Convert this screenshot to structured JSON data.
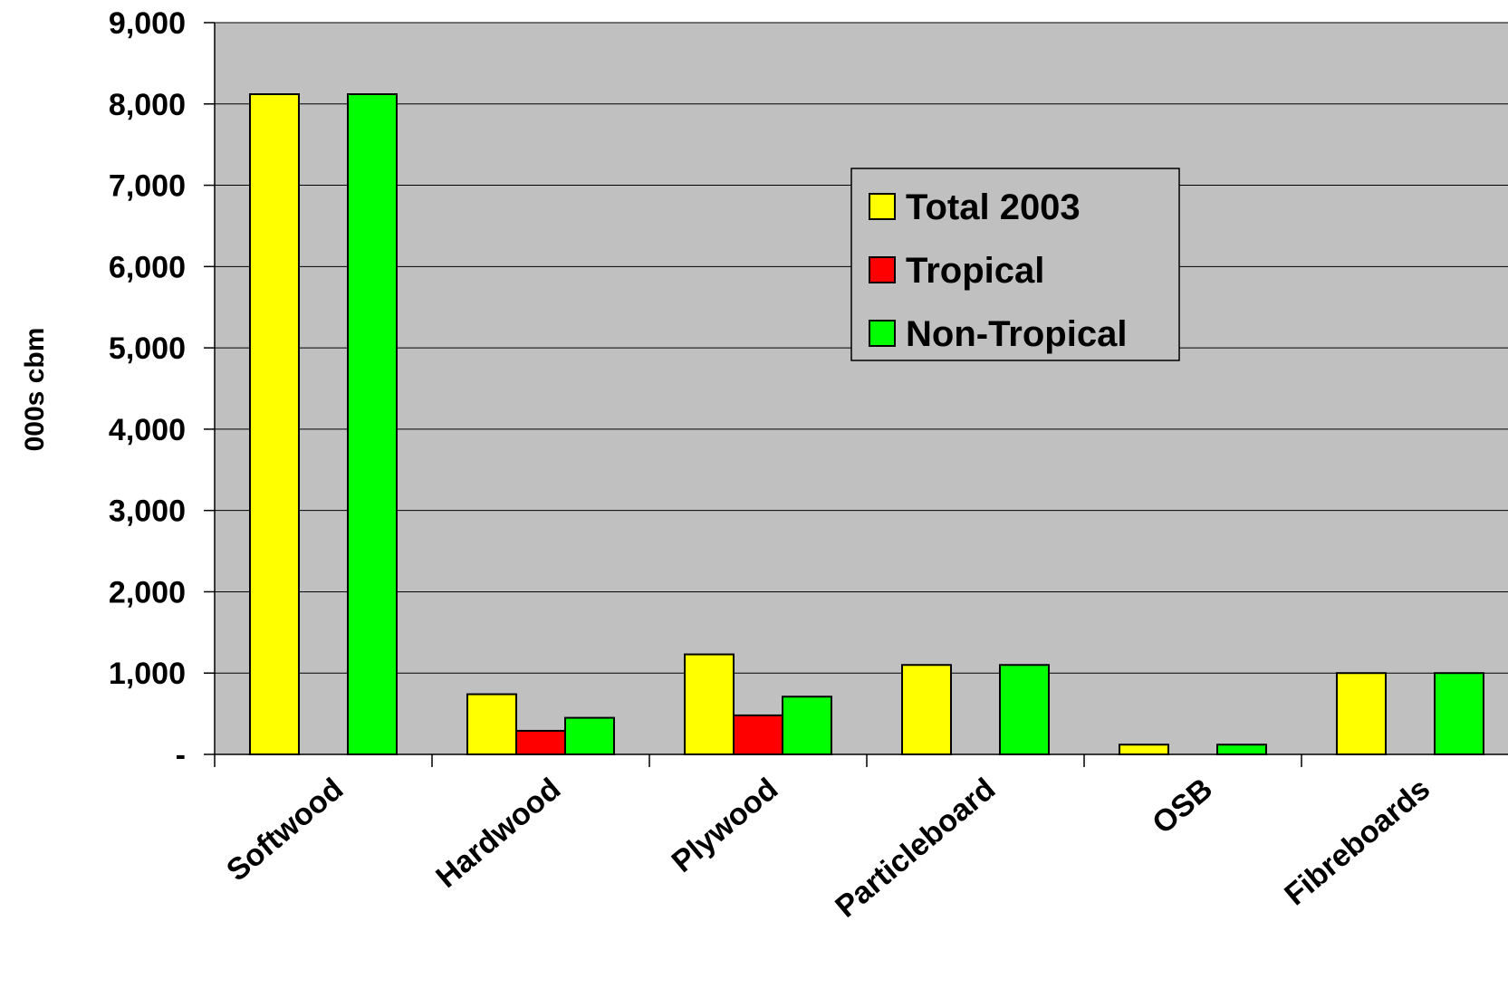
{
  "chart_data": {
    "type": "bar",
    "title": "",
    "xlabel": "",
    "ylabel": "000s cbm",
    "ylim": [
      0,
      9000
    ],
    "yticks": [
      0,
      1000,
      2000,
      3000,
      4000,
      5000,
      6000,
      7000,
      8000,
      9000
    ],
    "ytick_labels": [
      "-",
      "1,000",
      "2,000",
      "3,000",
      "4,000",
      "5,000",
      "6,000",
      "7,000",
      "8,000",
      "9,000"
    ],
    "categories": [
      "Softwood",
      "Hardwood",
      "Plywood",
      "Particleboard",
      "OSB",
      "Fibreboards"
    ],
    "series": [
      {
        "name": "Total 2003",
        "color": "#ffff00",
        "values": [
          8120,
          740,
          1230,
          1100,
          120,
          1000
        ]
      },
      {
        "name": "Tropical",
        "color": "#ff0000",
        "values": [
          0,
          290,
          480,
          0,
          0,
          0
        ]
      },
      {
        "name": "Non-Tropical",
        "color": "#00ff00",
        "values": [
          8120,
          450,
          710,
          1100,
          120,
          1000
        ]
      }
    ],
    "grid": true,
    "plot_background": "#c0c0c0",
    "legend_position": "center-right"
  }
}
